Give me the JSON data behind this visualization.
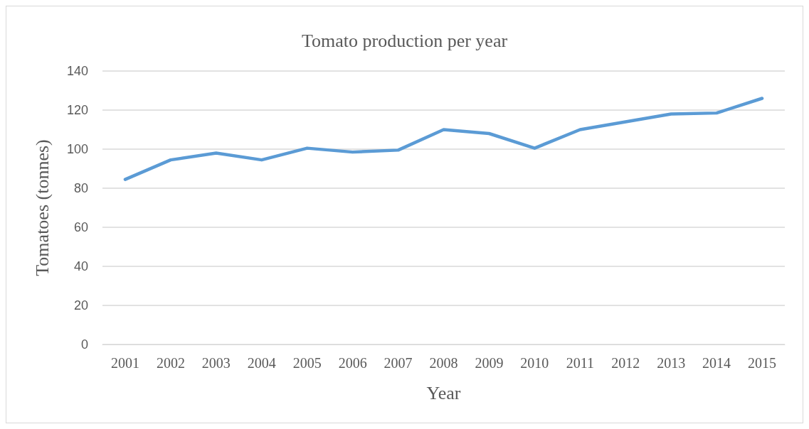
{
  "chart_data": {
    "type": "line",
    "title": "Tomato production per year",
    "xlabel": "Year",
    "ylabel": "Tomatoes (tonnes)",
    "categories": [
      "2001",
      "2002",
      "2003",
      "2004",
      "2005",
      "2006",
      "2007",
      "2008",
      "2009",
      "2010",
      "2011",
      "2012",
      "2013",
      "2014",
      "2015"
    ],
    "series": [
      {
        "color": "#5b9bd5",
        "values": [
          84.5,
          94.5,
          98,
          94.5,
          100.5,
          98.5,
          99.5,
          110,
          108,
          100.5,
          110,
          114,
          118,
          118.5,
          126
        ]
      }
    ],
    "ylim": [
      0,
      140
    ],
    "yticks": [
      0,
      20,
      40,
      60,
      80,
      100,
      120,
      140
    ],
    "grid": "y",
    "marker": "none",
    "line_style": "solid"
  }
}
